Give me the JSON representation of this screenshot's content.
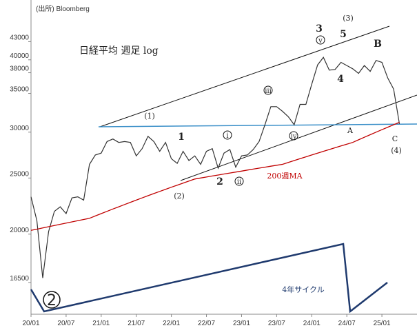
{
  "chart_data": {
    "type": "line",
    "source": "(出所) Bloomberg",
    "title": "日経平均 週足 log",
    "log_y": true,
    "x": [
      "2020-01",
      "2020-02",
      "2020-03",
      "2020-04",
      "2020-05",
      "2020-06",
      "2020-07",
      "2020-08",
      "2020-09",
      "2020-10",
      "2020-11",
      "2020-12",
      "2021-01",
      "2021-02",
      "2021-03",
      "2021-04",
      "2021-05",
      "2021-06",
      "2021-07",
      "2021-08",
      "2021-09",
      "2021-10",
      "2021-11",
      "2021-12",
      "2022-01",
      "2022-02",
      "2022-03",
      "2022-04",
      "2022-05",
      "2022-06",
      "2022-07",
      "2022-08",
      "2022-09",
      "2022-10",
      "2022-11",
      "2022-12",
      "2023-01",
      "2023-02",
      "2023-03",
      "2023-04",
      "2023-05",
      "2023-06",
      "2023-07",
      "2023-08",
      "2023-09",
      "2023-10",
      "2023-11",
      "2023-12",
      "2024-01",
      "2024-02",
      "2024-03",
      "2024-04",
      "2024-05",
      "2024-06",
      "2024-07",
      "2024-08",
      "2024-09",
      "2024-10",
      "2024-11",
      "2024-12",
      "2025-01",
      "2025-02",
      "2025-03",
      "2025-04"
    ],
    "series": [
      {
        "name": "日経平均",
        "color": "#333333",
        "values": [
          23200,
          21100,
          16800,
          20200,
          21900,
          22300,
          21700,
          23100,
          23200,
          22900,
          26400,
          27400,
          27600,
          28900,
          29200,
          28800,
          28900,
          28800,
          27300,
          28100,
          29500,
          28900,
          27800,
          28800,
          27000,
          26500,
          27800,
          26800,
          27300,
          26400,
          27800,
          28100,
          26000,
          27600,
          28000,
          26100,
          27300,
          27400,
          28000,
          28900,
          30900,
          33200,
          33200,
          32600,
          31900,
          30900,
          33500,
          33500,
          36300,
          39200,
          40400,
          38400,
          38500,
          39600,
          39100,
          38600,
          37900,
          39100,
          38200,
          39900,
          39600,
          37200,
          35600,
          31000
        ]
      },
      {
        "name": "200週MA",
        "color": "#c00000",
        "values": [
          20300,
          20400,
          20500,
          20600,
          20700,
          20800,
          20900,
          21000,
          21100,
          21200,
          21300,
          21500,
          21700,
          21900,
          22100,
          22300,
          22500,
          22700,
          22900,
          23100,
          23300,
          23500,
          23700,
          23900,
          24100,
          24300,
          24500,
          24700,
          24900,
          25000,
          25100,
          25200,
          25300,
          25400,
          25500,
          25600,
          25700,
          25800,
          25900,
          26000,
          26100,
          26200,
          26300,
          26400,
          26600,
          26800,
          27000,
          27200,
          27400,
          27600,
          27800,
          28000,
          28200,
          28400,
          28600,
          28800,
          29100,
          29400,
          29700,
          30000,
          30300,
          30600,
          30900,
          31200
        ]
      }
    ],
    "xlim": [
      "2020-01",
      "2025-07"
    ],
    "xticks": [
      {
        "value": "2020-01",
        "label": "20/01"
      },
      {
        "value": "2020-07",
        "label": "20/07"
      },
      {
        "value": "2021-01",
        "label": "21/01"
      },
      {
        "value": "2021-07",
        "label": "21/07"
      },
      {
        "value": "2022-01",
        "label": "22/01"
      },
      {
        "value": "2022-07",
        "label": "22/07"
      },
      {
        "value": "2023-01",
        "label": "23/01"
      },
      {
        "value": "2023-07",
        "label": "23/07"
      },
      {
        "value": "2024-01",
        "label": "24/01"
      },
      {
        "value": "2024-07",
        "label": "24/07"
      },
      {
        "value": "2025-01",
        "label": "25/01"
      }
    ],
    "ylim": [
      13770,
      50740
    ],
    "yticks": [
      16500,
      20000,
      25000,
      30000,
      35000,
      38000,
      40000,
      43000
    ],
    "annotations": [
      "(1)",
      "1",
      "(2)",
      "2",
      "ⅰ",
      "ⅱ",
      "ⅲ",
      "ⅳ",
      "ⅴ",
      "3",
      "(3)",
      "5",
      "4",
      "A",
      "B",
      "C",
      "(4)",
      "200週MA",
      "4年サイクル",
      "2"
    ]
  }
}
